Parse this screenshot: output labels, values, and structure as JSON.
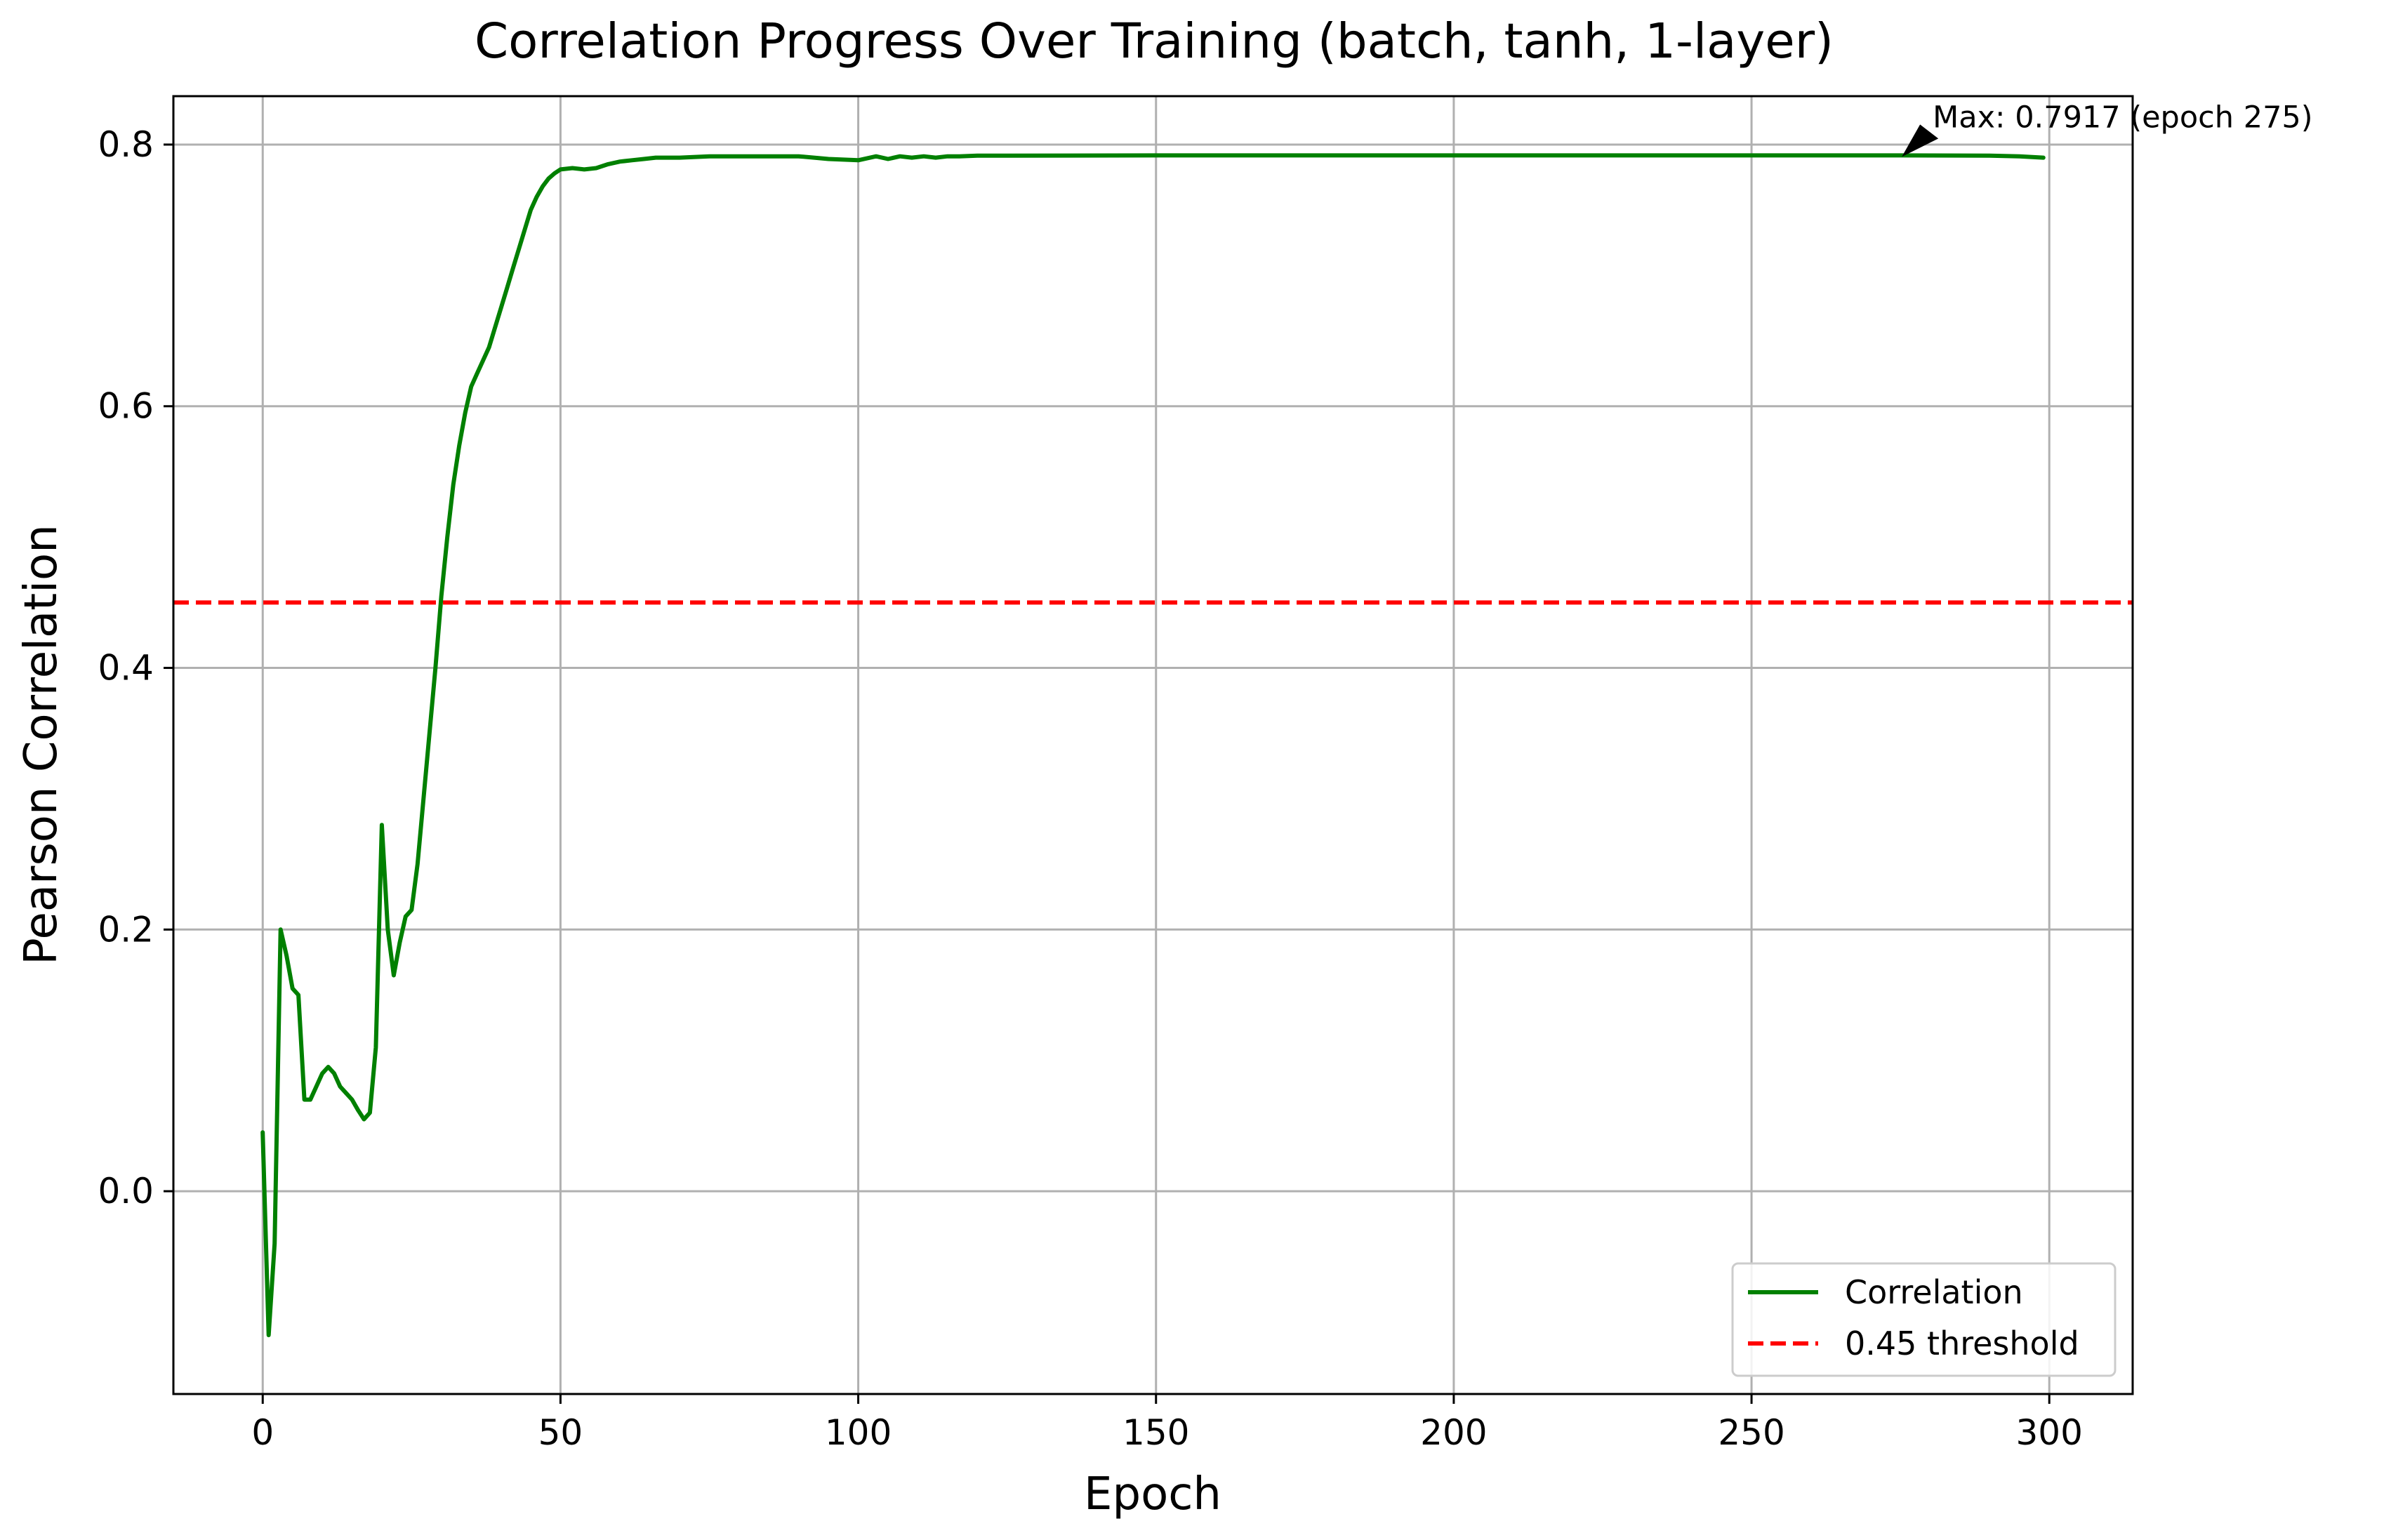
{
  "chart_data": {
    "type": "line",
    "title": "Correlation Progress Over Training (batch, tanh, 1-layer)",
    "xlabel": "Epoch",
    "ylabel": "Pearson Correlation",
    "xlim": [
      -15,
      314
    ],
    "ylim": [
      -0.155,
      0.837
    ],
    "xticks": [
      0,
      50,
      100,
      150,
      200,
      250,
      300
    ],
    "yticks": [
      0.0,
      0.2,
      0.4,
      0.6,
      0.8
    ],
    "xtick_labels": [
      "0",
      "50",
      "100",
      "150",
      "200",
      "250",
      "300"
    ],
    "ytick_labels": [
      "0.0",
      "0.2",
      "0.4",
      "0.6",
      "0.8"
    ],
    "grid": true,
    "legend_position": "lower-right",
    "series": [
      {
        "name": "Correlation",
        "color": "#008000",
        "style": "solid",
        "x": [
          0,
          1,
          2,
          3,
          4,
          5,
          6,
          7,
          8,
          9,
          10,
          11,
          12,
          13,
          14,
          15,
          16,
          17,
          18,
          19,
          20,
          21,
          22,
          23,
          24,
          25,
          26,
          27,
          28,
          29,
          30,
          31,
          32,
          33,
          34,
          35,
          36,
          37,
          38,
          39,
          40,
          41,
          42,
          43,
          44,
          45,
          46,
          47,
          48,
          49,
          50,
          52,
          54,
          56,
          58,
          60,
          62,
          64,
          66,
          68,
          70,
          75,
          80,
          85,
          90,
          95,
          100,
          103,
          105,
          107,
          109,
          111,
          113,
          115,
          117,
          120,
          125,
          150,
          200,
          250,
          275,
          290,
          295,
          299
        ],
        "y": [
          0.045,
          -0.11,
          -0.04,
          0.2,
          0.18,
          0.155,
          0.15,
          0.07,
          0.07,
          0.08,
          0.09,
          0.095,
          0.09,
          0.08,
          0.075,
          0.07,
          0.062,
          0.055,
          0.06,
          0.11,
          0.28,
          0.2,
          0.165,
          0.19,
          0.21,
          0.215,
          0.25,
          0.3,
          0.35,
          0.4,
          0.455,
          0.5,
          0.54,
          0.57,
          0.595,
          0.615,
          0.625,
          0.635,
          0.645,
          0.66,
          0.675,
          0.69,
          0.705,
          0.72,
          0.735,
          0.75,
          0.76,
          0.768,
          0.774,
          0.778,
          0.781,
          0.782,
          0.781,
          0.782,
          0.785,
          0.787,
          0.788,
          0.789,
          0.79,
          0.79,
          0.79,
          0.791,
          0.791,
          0.791,
          0.791,
          0.789,
          0.788,
          0.791,
          0.789,
          0.791,
          0.79,
          0.791,
          0.79,
          0.791,
          0.791,
          0.7915,
          0.7915,
          0.7917,
          0.7917,
          0.7917,
          0.7917,
          0.7915,
          0.791,
          0.79
        ]
      },
      {
        "name": "0.45 threshold",
        "color": "#ff0000",
        "style": "dashed",
        "y_constant": 0.45
      }
    ],
    "annotation": {
      "text": "Max: 0.7917 (epoch 275)",
      "x": 275,
      "y": 0.7917
    }
  }
}
